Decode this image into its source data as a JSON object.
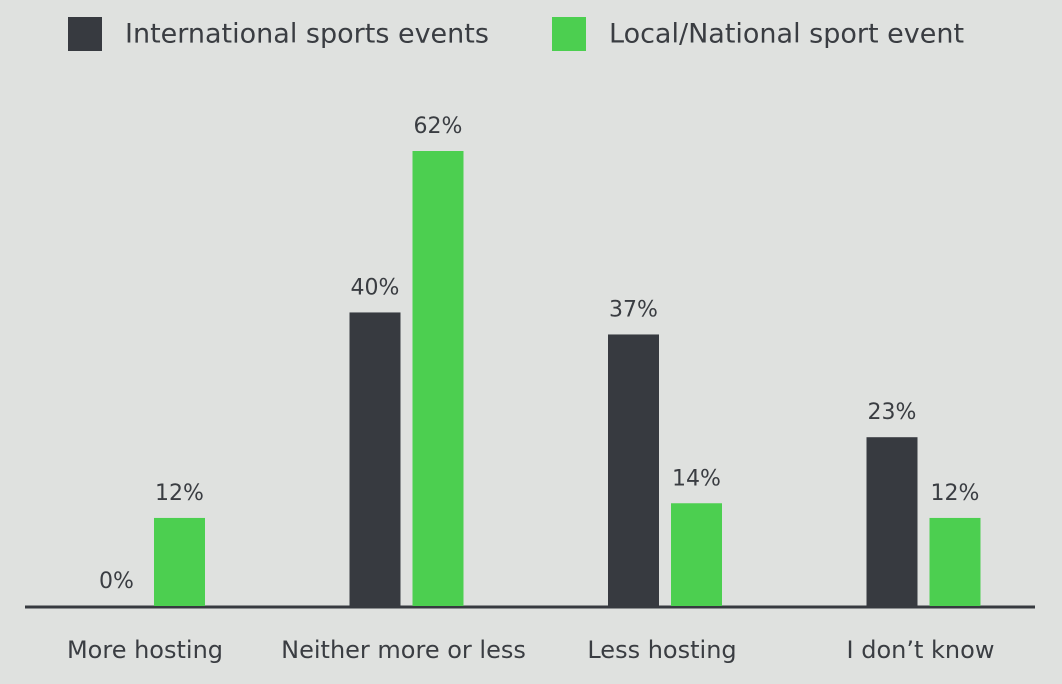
{
  "chart_data": {
    "type": "bar",
    "categories": [
      "More hosting",
      "Neither more or less",
      "Less hosting",
      "I don’t know"
    ],
    "series": [
      {
        "name": "International sports events",
        "color": "#373a40",
        "values": [
          0,
          40,
          37,
          23
        ],
        "value_labels": [
          "0%",
          "40%",
          "37%",
          "23%"
        ]
      },
      {
        "name": "Local/National sport event",
        "color": "#4ccf50",
        "values": [
          12,
          62,
          14,
          12
        ],
        "value_labels": [
          "12%",
          "62%",
          "14%",
          "12%"
        ]
      }
    ]
  }
}
